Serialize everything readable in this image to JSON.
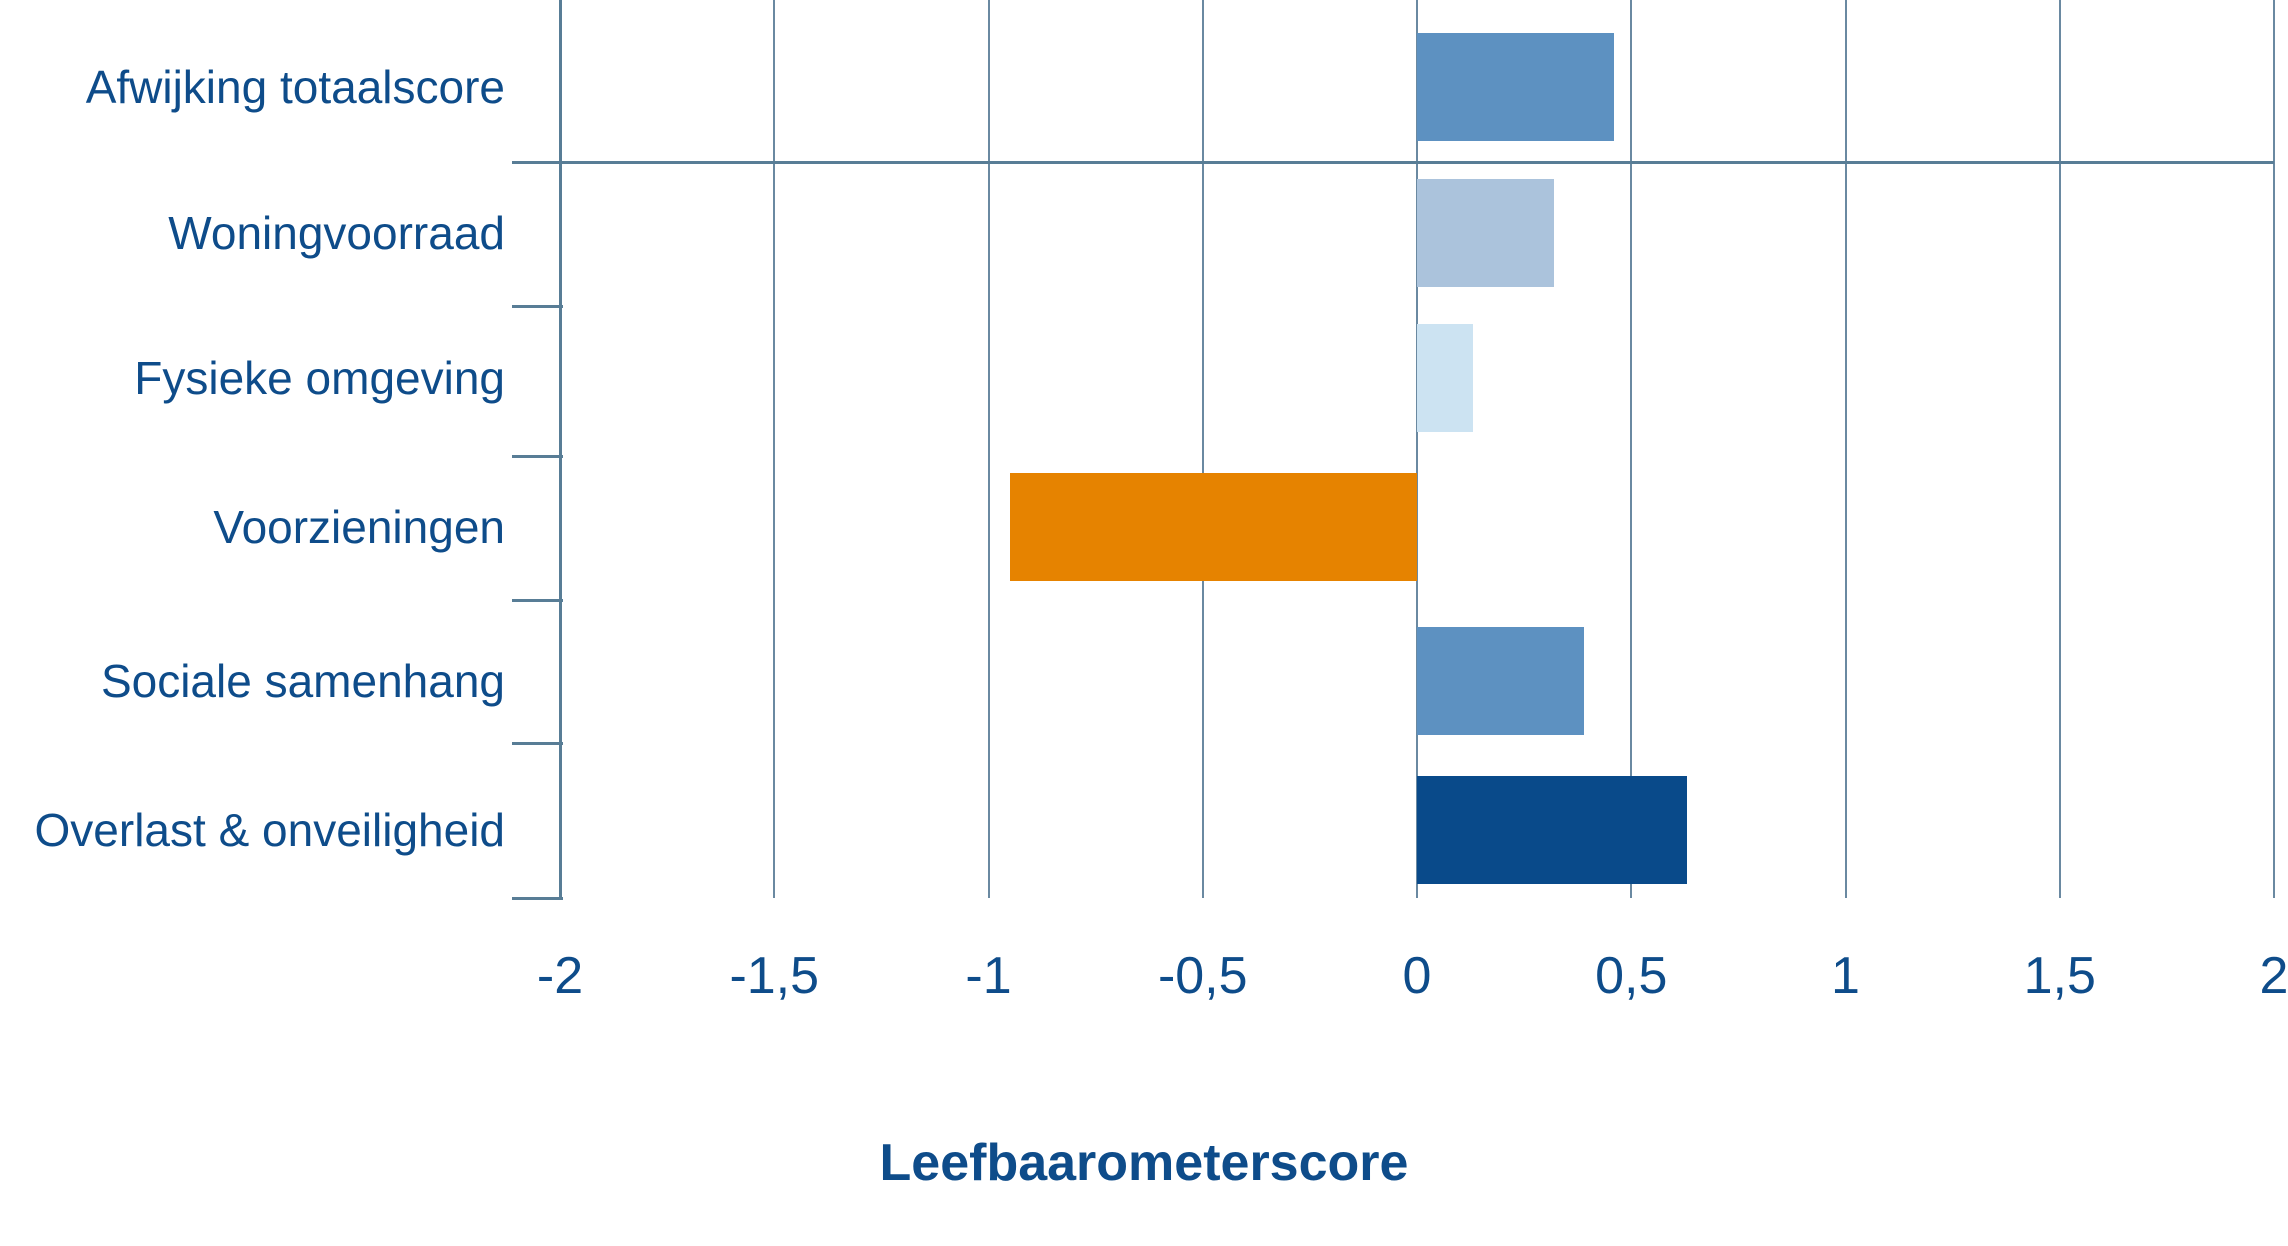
{
  "chart_data": {
    "type": "bar",
    "orientation": "horizontal",
    "title": "",
    "xlabel": "Leefbaarometerscore",
    "ylabel": "",
    "xlim": [
      -2,
      2
    ],
    "x_ticks": [
      -2,
      -1.5,
      -1,
      -0.5,
      0,
      0.5,
      1,
      1.5,
      2
    ],
    "x_tick_labels": [
      "-2",
      "-1,5",
      "-1",
      "-0,5",
      "0",
      "0,5",
      "1",
      "1,5",
      "2"
    ],
    "grid": "vertical-only",
    "legend": "none",
    "separator_after_first_category": true,
    "categories": [
      "Afwijking totaalscore",
      "Woningvoorraad",
      "Fysieke omgeving",
      "Voorzieningen",
      "Sociale samenhang",
      "Overlast & onveiligheid"
    ],
    "values": [
      0.46,
      0.32,
      0.13,
      -0.95,
      0.39,
      0.63
    ],
    "bar_colors": [
      "#5d91c1",
      "#abc3dc",
      "#cce3f2",
      "#e68300",
      "#5d91c1",
      "#094a8a"
    ]
  },
  "colors": {
    "background": "#ffffff",
    "grid": "#6a89a1",
    "axis": "#587d96",
    "text": "#0e4c8a"
  }
}
